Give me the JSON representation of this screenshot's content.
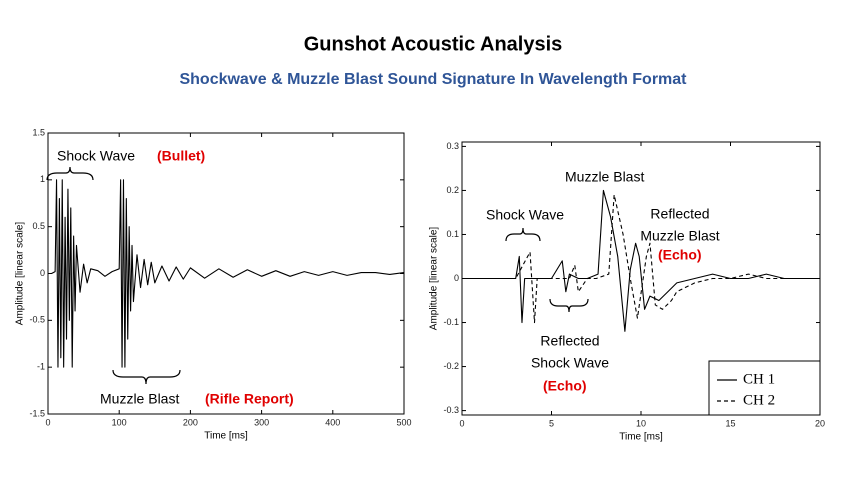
{
  "title": "Gunshot Acoustic Analysis",
  "subtitle": "Shockwave & Muzzle Blast Sound Signature In Wavelength Format",
  "chart_data": [
    {
      "type": "line",
      "xlabel": "Time [ms]",
      "ylabel": "Amplitude [linear scale]",
      "xlim": [
        0,
        500
      ],
      "xticks": [
        0,
        100,
        200,
        300,
        400,
        500
      ],
      "ylim": [
        -1.5,
        1.5
      ],
      "yticks": [
        -1.5,
        -1,
        -0.5,
        0,
        0.5,
        1,
        1.5
      ],
      "x": [
        0,
        5,
        10,
        12,
        14,
        16,
        18,
        20,
        22,
        24,
        26,
        28,
        30,
        32,
        34,
        36,
        38,
        40,
        45,
        50,
        55,
        60,
        70,
        80,
        90,
        100,
        102,
        104,
        106,
        108,
        110,
        112,
        114,
        116,
        118,
        120,
        125,
        130,
        135,
        140,
        145,
        150,
        160,
        170,
        180,
        190,
        200,
        220,
        240,
        260,
        280,
        300,
        320,
        340,
        360,
        380,
        400,
        420,
        440,
        460,
        480,
        500
      ],
      "series": [
        {
          "color": "#000000",
          "dash": false,
          "values": [
            0,
            0,
            0.02,
            1,
            -1,
            0.8,
            -0.9,
            1,
            -1,
            0.6,
            -0.7,
            0.9,
            -0.5,
            0.7,
            -1,
            0.4,
            -0.4,
            0.3,
            -0.2,
            0.1,
            -0.1,
            0.05,
            0.03,
            -0.03,
            0.02,
            0.05,
            1,
            -1,
            1,
            -1,
            0.8,
            -0.7,
            0.5,
            -0.4,
            0.3,
            -0.3,
            0.2,
            -0.15,
            0.15,
            -0.12,
            0.12,
            -0.1,
            0.08,
            -0.08,
            0.07,
            -0.06,
            0.06,
            -0.05,
            0.05,
            -0.04,
            0.04,
            -0.03,
            0.03,
            -0.03,
            0.02,
            -0.02,
            0.02,
            -0.02,
            0.01,
            0.01,
            -0.01,
            0.01
          ]
        }
      ],
      "annotations": [
        {
          "lines": [
            "Shock Wave"
          ],
          "color": "#000000",
          "bold": false
        },
        {
          "lines": [
            "(Bullet)"
          ],
          "color": "#e00000",
          "bold": true
        },
        {
          "lines": [
            "Muzzle Blast"
          ],
          "color": "#000000",
          "bold": false
        },
        {
          "lines": [
            "(Rifle Report)"
          ],
          "color": "#e00000",
          "bold": true
        }
      ]
    },
    {
      "type": "line",
      "xlabel": "Time [ms]",
      "ylabel": "Amplitude [linear scale]",
      "xlim": [
        0,
        20
      ],
      "xticks": [
        0,
        5,
        10,
        15,
        20
      ],
      "ylim": [
        -0.31,
        0.31
      ],
      "yticks": [
        -0.3,
        -0.2,
        -0.1,
        0,
        0.1,
        0.2,
        0.3
      ],
      "legend": "lower right",
      "series": [
        {
          "name": "CH 1",
          "color": "#000000",
          "dash": false,
          "x": [
            0,
            1,
            2,
            3,
            3.2,
            3.35,
            3.5,
            4,
            5,
            5.6,
            5.8,
            6,
            6.5,
            7,
            7.6,
            7.9,
            8.3,
            8.7,
            9.1,
            9.4,
            9.7,
            9.9,
            10.2,
            10.5,
            11,
            11.5,
            12,
            13,
            14,
            15,
            16,
            17,
            18,
            19,
            20
          ],
          "values": [
            0,
            0,
            0,
            0,
            0.05,
            -0.1,
            0,
            0,
            0,
            0.04,
            -0.03,
            0.01,
            0,
            0,
            0.01,
            0.2,
            0.14,
            0.05,
            -0.12,
            0.02,
            0.08,
            0.05,
            -0.07,
            -0.04,
            -0.05,
            -0.03,
            -0.01,
            0,
            0.01,
            0,
            0,
            0.01,
            0,
            0,
            0
          ]
        },
        {
          "name": "CH 2",
          "color": "#000000",
          "dash": true,
          "x": [
            0,
            1,
            2,
            3,
            3.8,
            4.05,
            4.2,
            5,
            6,
            6.3,
            6.5,
            7,
            7.5,
            8.2,
            8.5,
            9,
            9.4,
            9.8,
            10.3,
            10.5,
            10.8,
            11.2,
            11.7,
            12,
            13,
            14,
            15,
            16,
            17,
            18,
            19,
            20
          ],
          "values": [
            0,
            0,
            0,
            0,
            0.06,
            -0.1,
            0,
            0,
            0,
            0.03,
            -0.03,
            0,
            0,
            0.01,
            0.19,
            0.1,
            0,
            -0.09,
            0.05,
            0.08,
            -0.06,
            -0.07,
            -0.05,
            -0.03,
            -0.01,
            0,
            0,
            0.01,
            0,
            0,
            0,
            0
          ]
        }
      ],
      "annotations": [
        {
          "lines": [
            "Muzzle Blast"
          ],
          "color": "#000000",
          "bold": false
        },
        {
          "lines": [
            "Shock Wave"
          ],
          "color": "#000000",
          "bold": false
        },
        {
          "lines": [
            "Reflected",
            "Muzzle Blast"
          ],
          "color": "#000000",
          "bold": false
        },
        {
          "lines": [
            "(Echo)"
          ],
          "color": "#e00000",
          "bold": true
        },
        {
          "lines": [
            "Reflected",
            "Shock Wave"
          ],
          "color": "#000000",
          "bold": false
        },
        {
          "lines": [
            "(Echo)"
          ],
          "color": "#e00000",
          "bold": true
        }
      ]
    }
  ]
}
